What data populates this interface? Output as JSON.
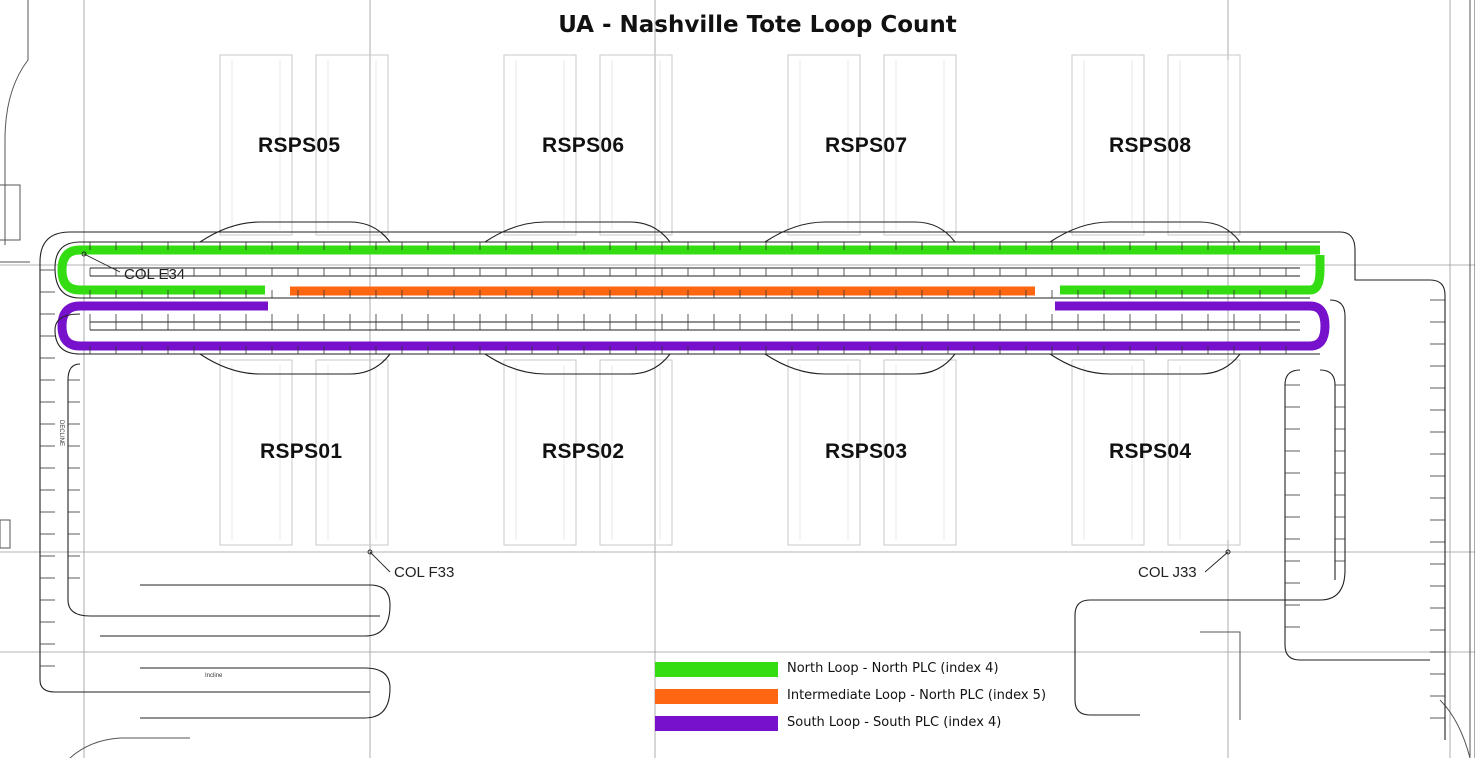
{
  "title": "UA - Nashville Tote Loop Count",
  "colors": {
    "north_loop": "#33dd11",
    "intermediate_loop": "#ff6611",
    "south_loop": "#7711cc",
    "drawing_line": "#222222",
    "faint_line": "#c8c8c8"
  },
  "stations_top": [
    "RSPS05",
    "RSPS06",
    "RSPS07",
    "RSPS08"
  ],
  "stations_bottom": [
    "RSPS01",
    "RSPS02",
    "RSPS03",
    "RSPS04"
  ],
  "column_markers": [
    "COL E34",
    "COL F33",
    "COL J33"
  ],
  "conveyor_annotations": [
    "DECLINE",
    "Incline"
  ],
  "legend": [
    {
      "label": "North Loop - North PLC (index 4)",
      "color": "#33dd11",
      "icon": "green-swatch-icon"
    },
    {
      "label": "Intermediate Loop - North PLC (index 5)",
      "color": "#ff6611",
      "icon": "orange-swatch-icon"
    },
    {
      "label": "South Loop - South PLC (index 4)",
      "color": "#7711cc",
      "icon": "purple-swatch-icon"
    }
  ]
}
